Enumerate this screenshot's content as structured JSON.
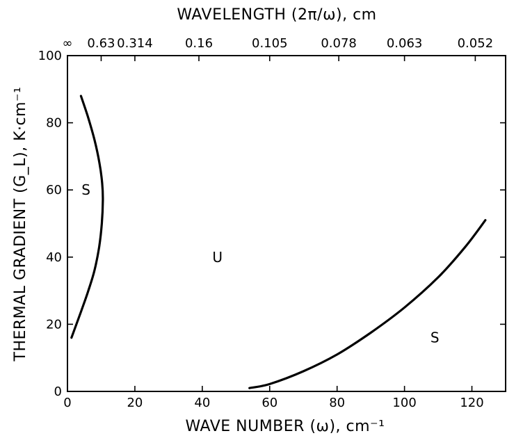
{
  "chart_data": {
    "type": "line",
    "title": "",
    "xlabel": "WAVE NUMBER (ω), cm⁻¹",
    "ylabel": "THERMAL GRADIENT (G_L), K·cm⁻¹",
    "top_axis_label": "WAVELENGTH (2π/ω), cm",
    "xlim": [
      0,
      130
    ],
    "ylim": [
      0,
      100
    ],
    "grid": false,
    "x_ticks": [
      0,
      20,
      40,
      60,
      80,
      100,
      120
    ],
    "x_tick_labels": [
      "0",
      "20",
      "40",
      "60",
      "80",
      "100",
      "120"
    ],
    "y_ticks": [
      0,
      20,
      40,
      60,
      80,
      100
    ],
    "y_tick_labels": [
      "0",
      "20",
      "40",
      "60",
      "80",
      "100"
    ],
    "top_ticks": [
      {
        "label": "∞",
        "wavenumber": 0
      },
      {
        "label": "0.63",
        "wavenumber": 10
      },
      {
        "label": "0.314",
        "wavenumber": 20
      },
      {
        "label": "0.16",
        "wavenumber": 39
      },
      {
        "label": "0.105",
        "wavenumber": 60
      },
      {
        "label": "0.078",
        "wavenumber": 80.5
      },
      {
        "label": "0.063",
        "wavenumber": 100
      },
      {
        "label": "0.052",
        "wavenumber": 121
      }
    ],
    "series": [
      {
        "x": [
          4,
          6,
          8,
          9.5,
          10.3,
          10.5,
          10.2,
          9.4,
          8,
          6.2,
          4.1,
          1.2
        ],
        "y": [
          88,
          82,
          75,
          68,
          62,
          57,
          50,
          43,
          36,
          30,
          24,
          16
        ]
      },
      {
        "x": [
          54,
          60,
          70,
          80,
          90,
          100,
          110,
          118,
          124
        ],
        "y": [
          1,
          2.2,
          6,
          11,
          17.5,
          25,
          34,
          43,
          51
        ]
      }
    ],
    "annotations": [
      {
        "text": "S",
        "x": 5.5,
        "y": 60
      },
      {
        "text": "U",
        "x": 44.5,
        "y": 40
      },
      {
        "text": "S",
        "x": 109,
        "y": 16
      }
    ]
  }
}
